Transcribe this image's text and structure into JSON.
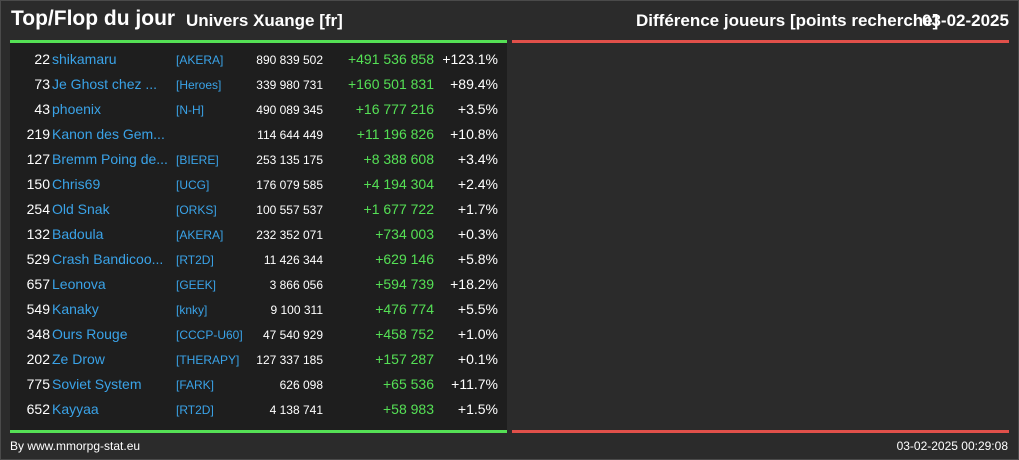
{
  "header": {
    "title": "Top/Flop du jour",
    "universe": "Univers Xuange [fr]",
    "metric": "Différence joueurs [points recherche]",
    "date": "03-02-2025"
  },
  "colors": {
    "top_line": "#55e055",
    "flop_line": "#e0504a",
    "name_link": "#3aa3e8",
    "positive_diff": "#55e055"
  },
  "rows": [
    {
      "rank": "22",
      "name": "shikamaru",
      "alliance": "[AKERA]",
      "points": "890 839 502",
      "diff": "+491 536 858",
      "pct": "+123.1%"
    },
    {
      "rank": "73",
      "name": "Je Ghost chez ...",
      "alliance": "[Heroes]",
      "points": "339 980 731",
      "diff": "+160 501 831",
      "pct": "+89.4%"
    },
    {
      "rank": "43",
      "name": "phoenix",
      "alliance": "[N-H]",
      "points": "490 089 345",
      "diff": "+16 777 216",
      "pct": "+3.5%"
    },
    {
      "rank": "219",
      "name": "Kanon des Gem...",
      "alliance": "",
      "points": "114 644 449",
      "diff": "+11 196 826",
      "pct": "+10.8%"
    },
    {
      "rank": "127",
      "name": "Bremm Poing de...",
      "alliance": "[BIERE]",
      "points": "253 135 175",
      "diff": "+8 388 608",
      "pct": "+3.4%"
    },
    {
      "rank": "150",
      "name": "Chris69",
      "alliance": "[UCG]",
      "points": "176 079 585",
      "diff": "+4 194 304",
      "pct": "+2.4%"
    },
    {
      "rank": "254",
      "name": "Old Snak",
      "alliance": "[ORKS]",
      "points": "100 557 537",
      "diff": "+1 677 722",
      "pct": "+1.7%"
    },
    {
      "rank": "132",
      "name": "Badoula",
      "alliance": "[AKERA]",
      "points": "232 352 071",
      "diff": "+734 003",
      "pct": "+0.3%"
    },
    {
      "rank": "529",
      "name": "Crash Bandicoo...",
      "alliance": "[RT2D]",
      "points": "11 426 344",
      "diff": "+629 146",
      "pct": "+5.8%"
    },
    {
      "rank": "657",
      "name": "Leonova",
      "alliance": "[GEEK]",
      "points": "3 866 056",
      "diff": "+594 739",
      "pct": "+18.2%"
    },
    {
      "rank": "549",
      "name": "Kanaky",
      "alliance": "[knky]",
      "points": "9 100 311",
      "diff": "+476 774",
      "pct": "+5.5%"
    },
    {
      "rank": "348",
      "name": "Ours Rouge",
      "alliance": "[CCCP-U60]",
      "points": "47 540 929",
      "diff": "+458 752",
      "pct": "+1.0%"
    },
    {
      "rank": "202",
      "name": "Ze Drow",
      "alliance": "[THERAPY]",
      "points": "127 337 185",
      "diff": "+157 287",
      "pct": "+0.1%"
    },
    {
      "rank": "775",
      "name": "Soviet System",
      "alliance": "[FARK]",
      "points": "626 098",
      "diff": "+65 536",
      "pct": "+11.7%"
    },
    {
      "rank": "652",
      "name": "Kayyaa",
      "alliance": "[RT2D]",
      "points": "4 138 741",
      "diff": "+58 983",
      "pct": "+1.5%"
    }
  ],
  "footer": {
    "credit": "By www.mmorpg-stat.eu",
    "timestamp": "03-02-2025 00:29:08"
  }
}
